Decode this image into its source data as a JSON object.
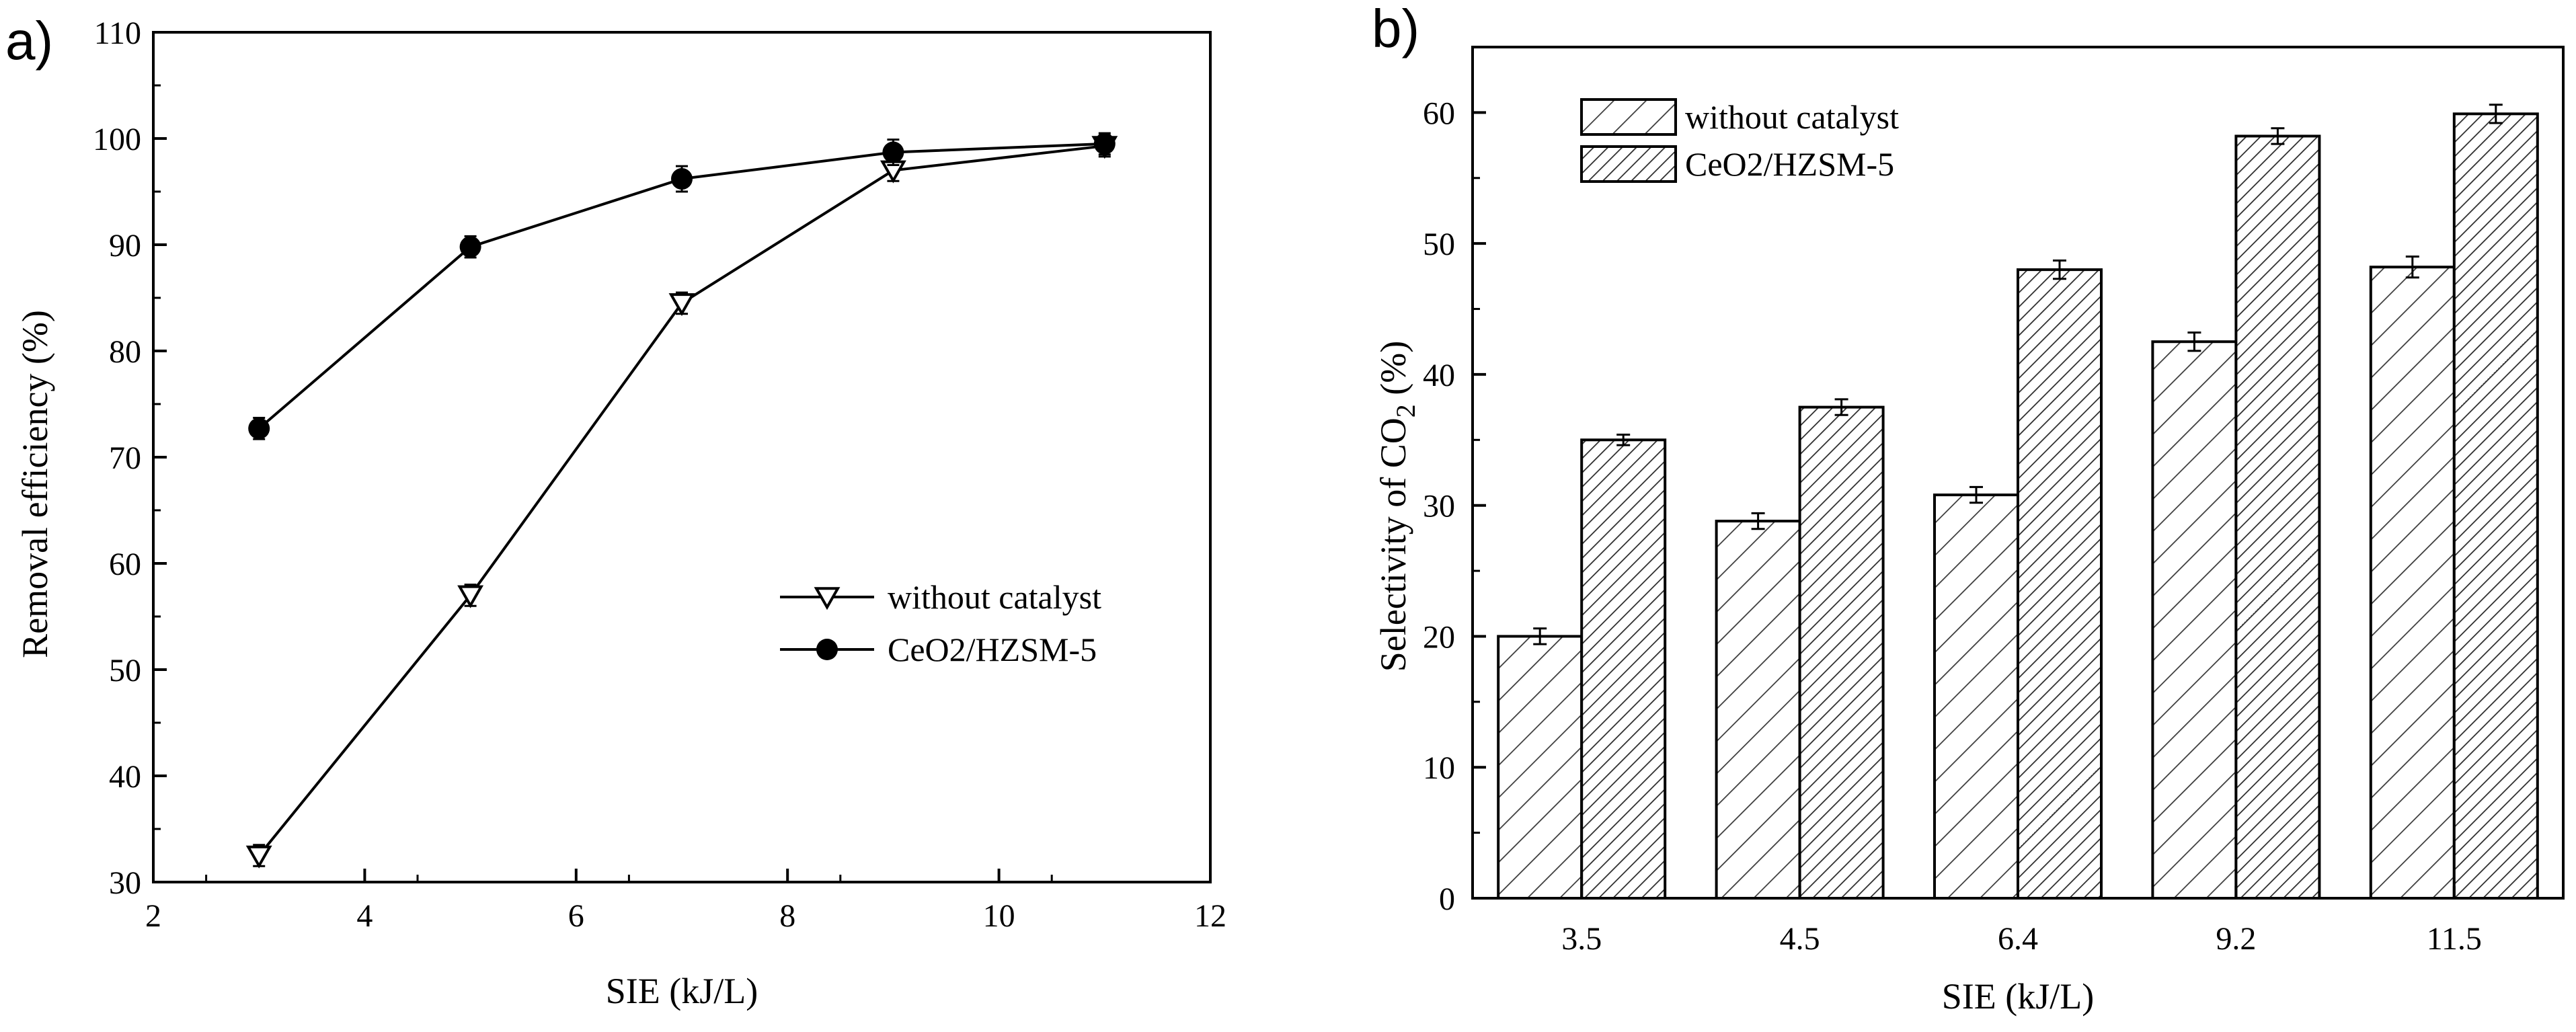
{
  "figure": {
    "panel_a_label": "a)",
    "panel_b_label": "b)"
  },
  "chart_data": [
    {
      "type": "line",
      "panel": "a)",
      "title": "",
      "xlabel": "SIE (kJ/L)",
      "ylabel": "Removal efficiency (%)",
      "xlim": [
        2,
        12
      ],
      "ylim": [
        30,
        110
      ],
      "xticks": [
        2,
        4,
        6,
        8,
        10,
        12
      ],
      "yticks": [
        30,
        40,
        50,
        60,
        70,
        80,
        90,
        100,
        110
      ],
      "grid": false,
      "legend_position": "center-right",
      "series": [
        {
          "name": "without catalyst",
          "marker": "open-down-triangle",
          "x": [
            3,
            5,
            7,
            9,
            11
          ],
          "y": [
            32.5,
            57.0,
            84.5,
            97.0,
            99.3
          ],
          "err": [
            1.0,
            1.0,
            1.0,
            1.0,
            1.0
          ]
        },
        {
          "name": "CeO2/HZSM-5",
          "marker": "filled-circle",
          "x": [
            3,
            5,
            7,
            9,
            11
          ],
          "y": [
            72.7,
            89.8,
            96.2,
            98.7,
            99.5
          ],
          "err": [
            1.0,
            1.0,
            1.2,
            1.2,
            1.0
          ]
        }
      ]
    },
    {
      "type": "bar",
      "panel": "b)",
      "title": "",
      "xlabel": "SIE (kJ/L)",
      "ylabel": "Selectivity of CO",
      "ylabel_subscript": "2",
      "ylabel_suffix": " (%)",
      "ylim": [
        0,
        65
      ],
      "yticks": [
        0,
        10,
        20,
        30,
        40,
        50,
        60
      ],
      "grid": false,
      "legend_position": "top-left",
      "categories": [
        "3.5",
        "4.5",
        "6.4",
        "9.2",
        "11.5"
      ],
      "series": [
        {
          "name": "without catalyst",
          "pattern": "sparse-diagonal-hatch",
          "values": [
            20.0,
            28.8,
            30.8,
            42.5,
            48.2
          ],
          "err": [
            0.6,
            0.6,
            0.6,
            0.7,
            0.8
          ]
        },
        {
          "name": "CeO2/HZSM-5",
          "pattern": "dense-diagonal-hatch",
          "values": [
            35.0,
            37.5,
            48.0,
            58.2,
            59.9
          ],
          "err": [
            0.4,
            0.6,
            0.7,
            0.6,
            0.7
          ]
        }
      ]
    }
  ]
}
